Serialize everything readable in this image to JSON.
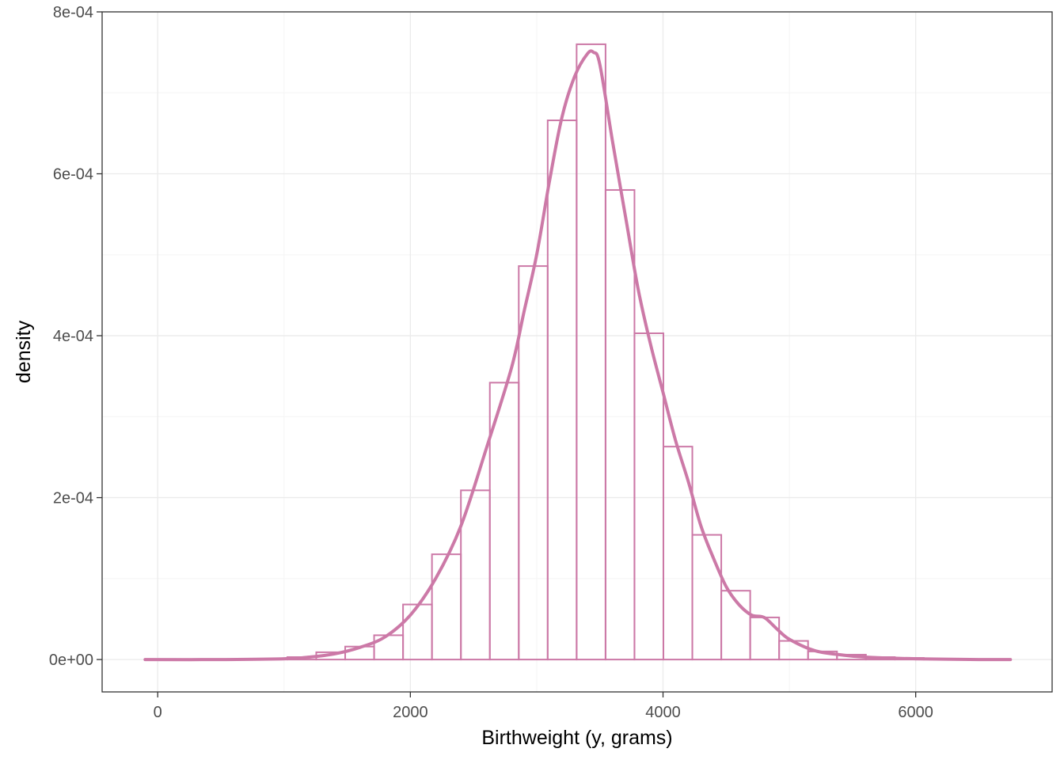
{
  "chart_data": {
    "type": "bar",
    "subtype": "histogram with density curve",
    "xlabel": "Birthweight (y, grams)",
    "ylabel": "density",
    "xlim": [
      -440,
      7080
    ],
    "ylim": [
      -4e-05,
      0.0008
    ],
    "x_ticks": [
      {
        "value": 0,
        "label": "0"
      },
      {
        "value": 2000,
        "label": "2000"
      },
      {
        "value": 4000,
        "label": "4000"
      },
      {
        "value": 6000,
        "label": "6000"
      }
    ],
    "y_ticks": [
      {
        "value": 0,
        "label": "0e+00"
      },
      {
        "value": 0.0002,
        "label": "2e-04"
      },
      {
        "value": 0.0004,
        "label": "4e-04"
      },
      {
        "value": 0.0006,
        "label": "6e-04"
      },
      {
        "value": 0.0008,
        "label": "8e-04"
      }
    ],
    "grid": true,
    "bin_width": 229,
    "bins": [
      {
        "x0": 110,
        "x1": 339,
        "density": 5e-07
      },
      {
        "x0": 339,
        "x1": 568,
        "density": 3e-07
      },
      {
        "x0": 568,
        "x1": 797,
        "density": 5e-07
      },
      {
        "x0": 797,
        "x1": 1026,
        "density": 1e-06
      },
      {
        "x0": 1026,
        "x1": 1255,
        "density": 3e-06
      },
      {
        "x0": 1255,
        "x1": 1484,
        "density": 9e-06
      },
      {
        "x0": 1484,
        "x1": 1713,
        "density": 1.6e-05
      },
      {
        "x0": 1713,
        "x1": 1942,
        "density": 3e-05
      },
      {
        "x0": 1942,
        "x1": 2171,
        "density": 6.8e-05
      },
      {
        "x0": 2171,
        "x1": 2400,
        "density": 0.00013
      },
      {
        "x0": 2400,
        "x1": 2629,
        "density": 0.000209
      },
      {
        "x0": 2629,
        "x1": 2858,
        "density": 0.000342
      },
      {
        "x0": 2858,
        "x1": 3087,
        "density": 0.000486
      },
      {
        "x0": 3087,
        "x1": 3316,
        "density": 0.000666
      },
      {
        "x0": 3316,
        "x1": 3545,
        "density": 0.00076
      },
      {
        "x0": 3545,
        "x1": 3774,
        "density": 0.00058
      },
      {
        "x0": 3774,
        "x1": 4003,
        "density": 0.000403
      },
      {
        "x0": 4003,
        "x1": 4232,
        "density": 0.000263
      },
      {
        "x0": 4232,
        "x1": 4461,
        "density": 0.000154
      },
      {
        "x0": 4461,
        "x1": 4690,
        "density": 8.5e-05
      },
      {
        "x0": 4690,
        "x1": 4919,
        "density": 5.2e-05
      },
      {
        "x0": 4919,
        "x1": 5148,
        "density": 2.3e-05
      },
      {
        "x0": 5148,
        "x1": 5377,
        "density": 1e-05
      },
      {
        "x0": 5377,
        "x1": 5606,
        "density": 6e-06
      },
      {
        "x0": 5606,
        "x1": 5835,
        "density": 3e-06
      },
      {
        "x0": 5835,
        "x1": 6064,
        "density": 2e-06
      },
      {
        "x0": 6064,
        "x1": 6293,
        "density": 1e-06
      },
      {
        "x0": 6293,
        "x1": 6522,
        "density": 5e-07
      },
      {
        "x0": 6522,
        "x1": 6751,
        "density": 3e-07
      }
    ],
    "density_curve": {
      "x": [
        -100,
        500,
        1000,
        1200,
        1400,
        1600,
        1800,
        2000,
        2200,
        2400,
        2600,
        2800,
        2900,
        3000,
        3100,
        3200,
        3300,
        3400,
        3450,
        3500,
        3600,
        3700,
        3800,
        3900,
        4000,
        4100,
        4200,
        4300,
        4400,
        4500,
        4600,
        4700,
        4800,
        4900,
        5000,
        5200,
        5400,
        5600,
        6000,
        6500,
        6750
      ],
      "y": [
        0.0,
        0.0,
        1e-06,
        3e-06,
        7e-06,
        1.5e-05,
        2.8e-05,
        5.5e-05,
        0.0001,
        0.000165,
        0.00026,
        0.00036,
        0.00043,
        0.0005,
        0.00059,
        0.00067,
        0.00072,
        0.000748,
        0.00075,
        0.000735,
        0.00064,
        0.00055,
        0.00046,
        0.00039,
        0.00033,
        0.00027,
        0.00022,
        0.000165,
        0.000125,
        9e-05,
        6.8e-05,
        5.5e-05,
        5.2e-05,
        3.8e-05,
        2.5e-05,
        1.1e-05,
        6e-06,
        3e-06,
        1e-06,
        0.0,
        0.0
      ]
    },
    "colors": {
      "bar_outline": "#cc79a7",
      "curve": "#cc79a7",
      "panel_border": "#333333",
      "grid_major": "#ebebeb",
      "grid_minor": "#f5f5f5"
    }
  }
}
